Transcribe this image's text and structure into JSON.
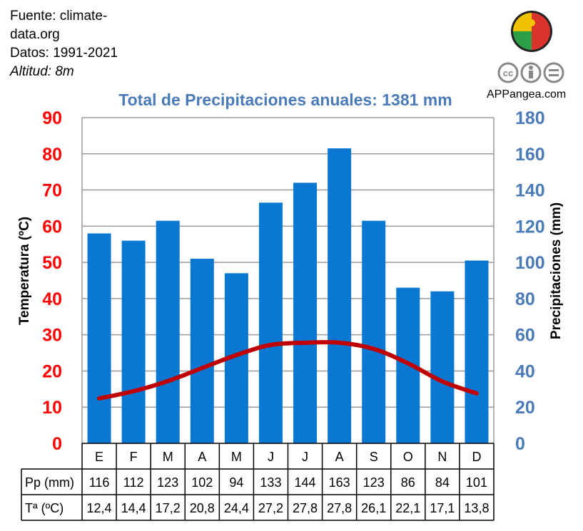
{
  "source": {
    "line1": "Fuente: climate-",
    "line2": "data.org",
    "period": "Datos: 1991-2021",
    "altitude": "Altitud: 8m"
  },
  "brand": {
    "site": "APPangea.com",
    "logo_icon": "puzzle-globe-icon",
    "license_icons": [
      "cc-icon",
      "by-icon",
      "nd-icon"
    ]
  },
  "colors": {
    "bars": "#0a78d2",
    "line": "#c00000",
    "left_axis": "#ff0000",
    "right_axis": "#4a7ab8",
    "title": "#4a7ab8"
  },
  "chart_data": {
    "type": "bar",
    "title": "Total de Precipitaciones anuales: 1381 mm",
    "categories": [
      "E",
      "F",
      "M",
      "A",
      "M",
      "J",
      "J",
      "A",
      "S",
      "O",
      "N",
      "D"
    ],
    "series": [
      {
        "name": "Pp (mm)",
        "type": "bar",
        "axis": "right",
        "values": [
          116,
          112,
          123,
          102,
          94,
          133,
          144,
          163,
          123,
          86,
          84,
          101
        ]
      },
      {
        "name": "Tª (ºC)",
        "type": "line",
        "axis": "left",
        "values": [
          12.4,
          14.4,
          17.2,
          20.8,
          24.4,
          27.2,
          27.8,
          27.8,
          26.1,
          22.1,
          17.1,
          13.8
        ]
      }
    ],
    "y_left": {
      "label": "Temperatura (ºC)",
      "ylim": [
        0,
        90
      ],
      "ticks": [
        "0",
        "10",
        "20",
        "30",
        "40",
        "50",
        "60",
        "70",
        "80",
        "90"
      ]
    },
    "y_right": {
      "label": "Precipitaciones (mm)",
      "ylim": [
        0,
        180
      ],
      "ticks": [
        "0",
        "20",
        "40",
        "60",
        "80",
        "100",
        "120",
        "140",
        "160",
        "180"
      ]
    },
    "grid": true,
    "table": {
      "rows": [
        {
          "label": "Pp (mm)",
          "values": [
            "116",
            "112",
            "123",
            "102",
            "94",
            "133",
            "144",
            "163",
            "123",
            "86",
            "84",
            "101"
          ]
        },
        {
          "label": "Tª (ºC)",
          "values": [
            "12,4",
            "14,4",
            "17,2",
            "20,8",
            "24,4",
            "27,2",
            "27,8",
            "27,8",
            "26,1",
            "22,1",
            "17,1",
            "13,8"
          ]
        }
      ]
    }
  }
}
